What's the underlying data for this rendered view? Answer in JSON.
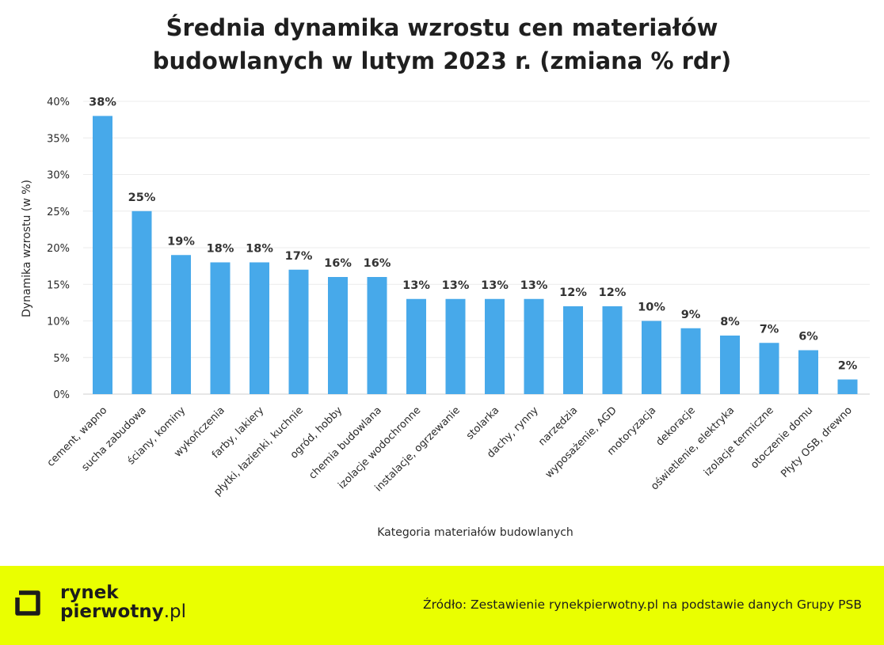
{
  "chart_data": {
    "type": "bar",
    "title_lines": [
      "Średnia dynamika wzrostu cen materiałów",
      "budowlanych w lutym 2023 r. (zmiana % rdr)"
    ],
    "xlabel": "Kategoria materiałów budowlanych",
    "ylabel": "Dynamika wzrostu (w %)",
    "ylim": [
      0,
      40
    ],
    "yticks": [
      0,
      5,
      10,
      15,
      20,
      25,
      30,
      35,
      40
    ],
    "ytick_labels": [
      "0%",
      "5%",
      "10%",
      "15%",
      "20%",
      "25%",
      "30%",
      "35%",
      "40%"
    ],
    "grid": true,
    "categories": [
      "cement, wapno",
      "sucha zabudowa",
      "ściany, kominy",
      "wykończenia",
      "farby, lakiery",
      "płytki, łazienki, kuchnie",
      "ogród, hobby",
      "chemia budowlana",
      "izolacje wodochronne",
      "instalacje, ogrzewanie",
      "stolarka",
      "dachy, rynny",
      "narzędzia",
      "wyposażenie, AGD",
      "motoryzacja",
      "dekoracje",
      "oświetlenie, elektryka",
      "izolacje termiczne",
      "otoczenie domu",
      "Płyty OSB, drewno"
    ],
    "values": [
      38,
      25,
      19,
      18,
      18,
      17,
      16,
      16,
      13,
      13,
      13,
      13,
      12,
      12,
      10,
      9,
      8,
      7,
      6,
      2
    ],
    "value_labels": [
      "38%",
      "25%",
      "19%",
      "18%",
      "18%",
      "17%",
      "16%",
      "16%",
      "13%",
      "13%",
      "13%",
      "13%",
      "12%",
      "12%",
      "10%",
      "9%",
      "8%",
      "7%",
      "6%",
      "2%"
    ],
    "bar_color": "#47a9ea"
  },
  "footer": {
    "logo_line1": "rynek",
    "logo_line2": "pierwotny",
    "logo_suffix": ".pl",
    "source": "Źródło: Zestawienie rynekpierwotny.pl na podstawie danych Grupy PSB",
    "background_color": "#eaff00"
  }
}
